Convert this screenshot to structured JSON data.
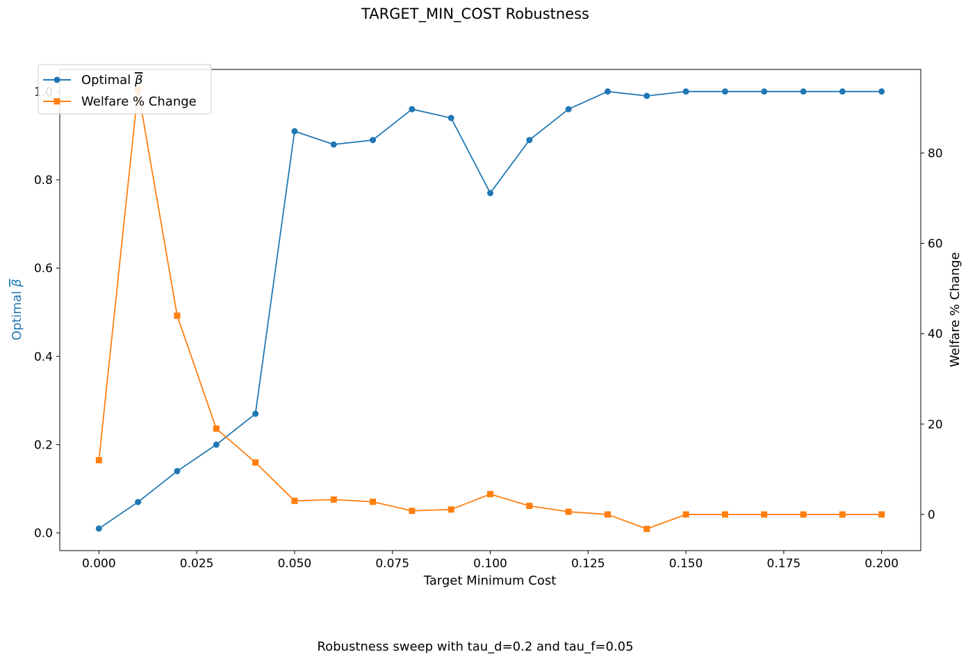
{
  "chart_data": {
    "type": "line",
    "title": "TARGET_MIN_COST Robustness",
    "caption": "Robustness sweep with tau_d=0.2 and tau_f=0.05",
    "xlabel": "Target Minimum Cost",
    "ylabel_left": "Optimal ",
    "ylabel_left_symbol": "β",
    "ylabel_right": "Welfare % Change",
    "x": [
      0.0,
      0.01,
      0.02,
      0.03,
      0.04,
      0.05,
      0.06,
      0.07,
      0.08,
      0.09,
      0.1,
      0.11,
      0.12,
      0.13,
      0.14,
      0.15,
      0.16,
      0.17,
      0.18,
      0.19,
      0.2
    ],
    "xlim": [
      -0.01,
      0.21
    ],
    "ylim_left": [
      -0.04,
      1.05
    ],
    "ylim_right": [
      -8,
      98.5
    ],
    "xticks": [
      "0.000",
      "0.025",
      "0.050",
      "0.075",
      "0.100",
      "0.125",
      "0.150",
      "0.175",
      "0.200"
    ],
    "xtick_values": [
      0.0,
      0.025,
      0.05,
      0.075,
      0.1,
      0.125,
      0.15,
      0.175,
      0.2
    ],
    "yticks_left": [
      "0.0",
      "0.2",
      "0.4",
      "0.6",
      "0.8",
      "1.0"
    ],
    "ytick_values_left": [
      0.0,
      0.2,
      0.4,
      0.6,
      0.8,
      1.0
    ],
    "yticks_right": [
      "0",
      "20",
      "40",
      "60",
      "80"
    ],
    "ytick_values_right": [
      0,
      20,
      40,
      60,
      80
    ],
    "series": [
      {
        "name": "Optimal ",
        "name_symbol": "β",
        "axis": "left",
        "marker": "circle",
        "color": "#1f77b4",
        "values": [
          0.01,
          0.07,
          0.14,
          0.2,
          0.27,
          0.91,
          0.88,
          0.89,
          0.96,
          0.94,
          0.77,
          0.89,
          0.96,
          1.0,
          0.99,
          1.0,
          1.0,
          1.0,
          1.0,
          1.0,
          1.0
        ]
      },
      {
        "name": "Welfare % Change",
        "axis": "right",
        "marker": "square",
        "color": "#ff7f0e",
        "values": [
          12.0,
          94.0,
          44.0,
          19.0,
          11.5,
          3.0,
          3.3,
          2.8,
          0.8,
          1.1,
          4.5,
          1.9,
          0.6,
          0.0,
          -3.2,
          0.0,
          0.0,
          0.0,
          0.0,
          0.0,
          0.0
        ]
      }
    ],
    "grid": false,
    "legend_position": "top-left"
  }
}
